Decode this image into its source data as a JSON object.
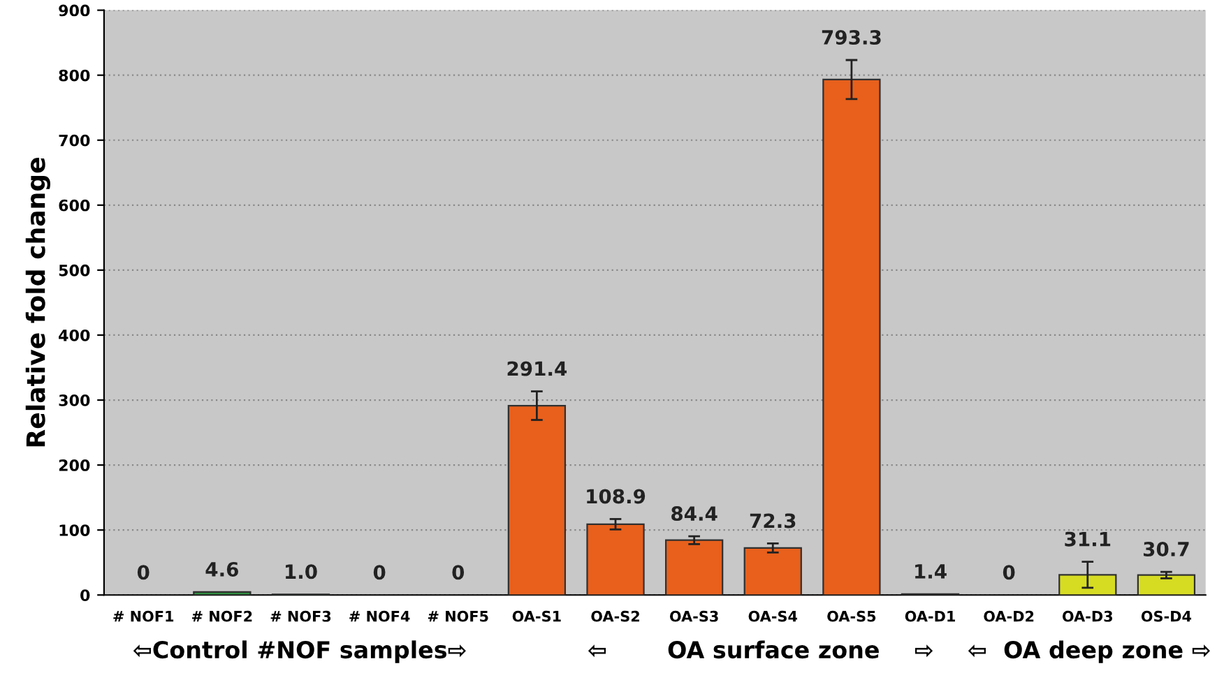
{
  "chart_data": {
    "type": "bar",
    "ylabel": "Relative fold change",
    "categories": [
      "# NOF1",
      "# NOF2",
      "# NOF3",
      "# NOF4",
      "# NOF5",
      "OA-S1",
      "OA-S2",
      "OA-S3",
      "OA-S4",
      "OA-S5",
      "OA-D1",
      "OA-D2",
      "OA-D3",
      "OS-D4"
    ],
    "values": [
      0,
      4.6,
      1.0,
      0,
      0,
      291.4,
      108.9,
      84.4,
      72.3,
      793.3,
      1.4,
      0,
      31.1,
      30.7
    ],
    "value_labels": [
      "0",
      "4.6",
      "1.0",
      "0",
      "0",
      "291.4",
      "108.9",
      "84.4",
      "72.3",
      "793.3",
      "1.4",
      "0",
      "31.1",
      "30.7"
    ],
    "errors": [
      null,
      null,
      null,
      null,
      null,
      22,
      8,
      6,
      7,
      30,
      null,
      null,
      20,
      5
    ],
    "colors": [
      "#2e8b3e",
      "#2e8b3e",
      "#2e8b3e",
      "#2e8b3e",
      "#2e8b3e",
      "#e8601c",
      "#e8601c",
      "#e8601c",
      "#e8601c",
      "#e8601c",
      "#2f4f3a",
      "#2f4f3a",
      "#d6dc22",
      "#d6dc22"
    ],
    "ylim": [
      0,
      900
    ],
    "yticks": [
      0,
      100,
      200,
      300,
      400,
      500,
      600,
      700,
      800,
      900
    ],
    "grid": "y",
    "legend": false,
    "annotations": [
      "⇦Control #NOF samples⇨",
      "⇦",
      "OA surface zone",
      "⇨",
      "⇦  OA deep zone ⇨"
    ]
  }
}
